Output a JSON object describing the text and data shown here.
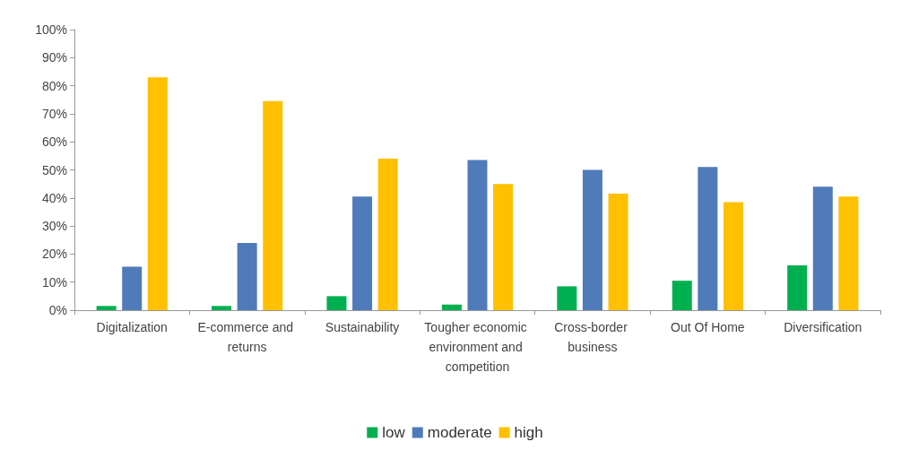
{
  "chart_data": {
    "type": "bar",
    "categories": [
      "Digitalization",
      "E-commerce and returns",
      "Sustainability",
      "Tougher economic environment and competition",
      "Cross-border business",
      "Out Of Home",
      "Diversification"
    ],
    "series": [
      {
        "name": "low",
        "color": "#00b050",
        "values": [
          1.5,
          1.5,
          5,
          2,
          8.5,
          10.5,
          16
        ]
      },
      {
        "name": "moderate",
        "color": "#4f7bba",
        "values": [
          15.5,
          24,
          40.5,
          53.5,
          50,
          51,
          44
        ]
      },
      {
        "name": "high",
        "color": "#ffc000",
        "values": [
          83,
          74.5,
          54,
          45,
          41.5,
          38.5,
          40.5
        ]
      }
    ],
    "ylim": [
      0,
      100
    ],
    "yticks": [
      {
        "value": 0,
        "label": "0%"
      },
      {
        "value": 10,
        "label": "10%"
      },
      {
        "value": 20,
        "label": "20%"
      },
      {
        "value": 30,
        "label": "30%"
      },
      {
        "value": 40,
        "label": "40%"
      },
      {
        "value": 50,
        "label": "50%"
      },
      {
        "value": 60,
        "label": "60%"
      },
      {
        "value": 70,
        "label": "70%"
      },
      {
        "value": 80,
        "label": "80%"
      },
      {
        "value": 90,
        "label": "90%"
      },
      {
        "value": 100,
        "label": "100%"
      }
    ],
    "grid": false,
    "legend": "bottom"
  }
}
